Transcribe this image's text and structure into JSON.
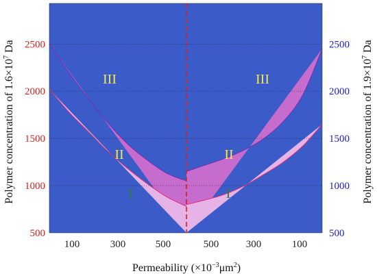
{
  "chart_data": {
    "type": "area",
    "title": "",
    "xlabel_base": "Permeability (×10",
    "xlabel_exp": "−3",
    "xlabel_tail": "μm",
    "xlabel_sq": "2",
    "xlabel_close": ")",
    "ylabel_left_base": "Polymer concentration of 1.6×10",
    "ylabel_left_exp": "7",
    "ylabel_left_unit": " Da",
    "ylabel_right_base": "Polymer concentration of 1.9×10",
    "ylabel_right_exp": "7",
    "ylabel_right_unit": " Da",
    "ylim": [
      500,
      2930
    ],
    "y_ticks_left": [
      "500",
      "1000",
      "1500",
      "2000",
      "2500"
    ],
    "y_ticks_right": [
      "500",
      "1000",
      "1500",
      "2000",
      "2500"
    ],
    "x_ticks": [
      "100",
      "300",
      "500",
      "500",
      "300",
      "100"
    ],
    "grid": true,
    "divider": "dashed-vertical-center",
    "colors": {
      "region_I": "#e6b3e6",
      "region_II": "#c66ccc",
      "region_III": "#3a5bc8",
      "left_axis": "#d62020",
      "right_axis": "#2020c8",
      "divider": "#d62020",
      "boundary_lower": "#e03070",
      "boundary_upper": "#7030b0",
      "label_I": "#2e7d32",
      "label_II_III": "#f5e94a"
    },
    "regions": [
      {
        "name": "I",
        "left_label_at": [
          130,
          1080
        ],
        "right_label_at": [
          300,
          1080
        ]
      },
      {
        "name": "II",
        "left_label_at": [
          430,
          1340
        ],
        "right_label_at": [
          430,
          1340
        ]
      },
      {
        "name": "III",
        "left_label_at": [
          700,
          2200
        ],
        "right_label_at": [
          700,
          2200
        ]
      }
    ],
    "left_panel": {
      "permeability": [
        700,
        600,
        500,
        400,
        300,
        200,
        100,
        0
      ],
      "lower_boundary": [
        2020,
        1780,
        1570,
        1360,
        1180,
        1020,
        880,
        780
      ],
      "upper_boundary": [
        2500,
        2200,
        1920,
        1660,
        1440,
        1270,
        1130,
        1050
      ]
    },
    "right_panel": {
      "permeability": [
        700,
        600,
        500,
        400,
        300,
        200,
        100,
        0
      ],
      "lower_boundary": [
        1650,
        1420,
        1250,
        1120,
        1000,
        910,
        850,
        800
      ],
      "upper_boundary": [
        2450,
        1960,
        1680,
        1500,
        1380,
        1290,
        1220,
        1150
      ]
    }
  }
}
